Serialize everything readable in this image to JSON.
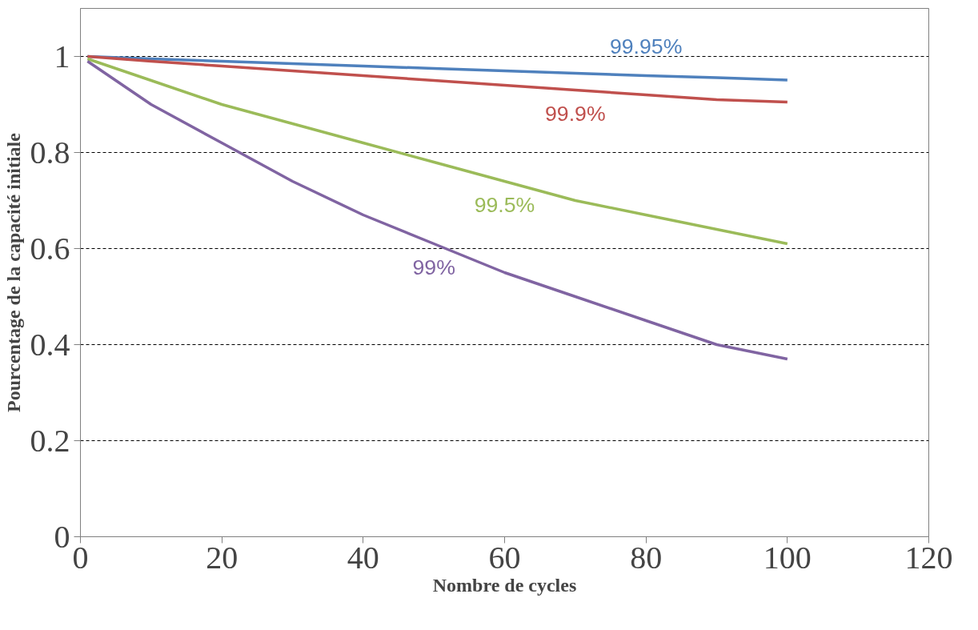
{
  "chart_data": {
    "type": "line",
    "xlabel": "Nombre de cycles",
    "ylabel": "Pourcentage de la capacité initiale",
    "x": [
      1,
      10,
      20,
      30,
      40,
      50,
      60,
      70,
      80,
      90,
      100
    ],
    "series": [
      {
        "name": "99.95%",
        "color": "#4f81bd",
        "values": [
          1.0,
          0.995,
          0.99,
          0.985,
          0.98,
          0.975,
          0.97,
          0.965,
          0.96,
          0.956,
          0.951
        ]
      },
      {
        "name": "99.9%",
        "color": "#c0504d",
        "values": [
          1.0,
          0.99,
          0.98,
          0.97,
          0.96,
          0.95,
          0.94,
          0.93,
          0.92,
          0.91,
          0.905
        ]
      },
      {
        "name": "99.5%",
        "color": "#9bbb59",
        "values": [
          0.995,
          0.95,
          0.9,
          0.86,
          0.82,
          0.78,
          0.74,
          0.7,
          0.67,
          0.64,
          0.61
        ]
      },
      {
        "name": "99%",
        "color": "#8064a2",
        "values": [
          0.99,
          0.9,
          0.82,
          0.74,
          0.67,
          0.61,
          0.55,
          0.5,
          0.45,
          0.4,
          0.37
        ]
      }
    ],
    "xlim": [
      0,
      120
    ],
    "ylim": [
      0,
      1.1
    ],
    "xticks": [
      0,
      20,
      40,
      60,
      80,
      100,
      120
    ],
    "yticks": [
      0,
      0.2,
      0.4,
      0.6,
      0.8,
      1
    ],
    "grid": "y",
    "marker": "none",
    "line_style": "solid"
  }
}
